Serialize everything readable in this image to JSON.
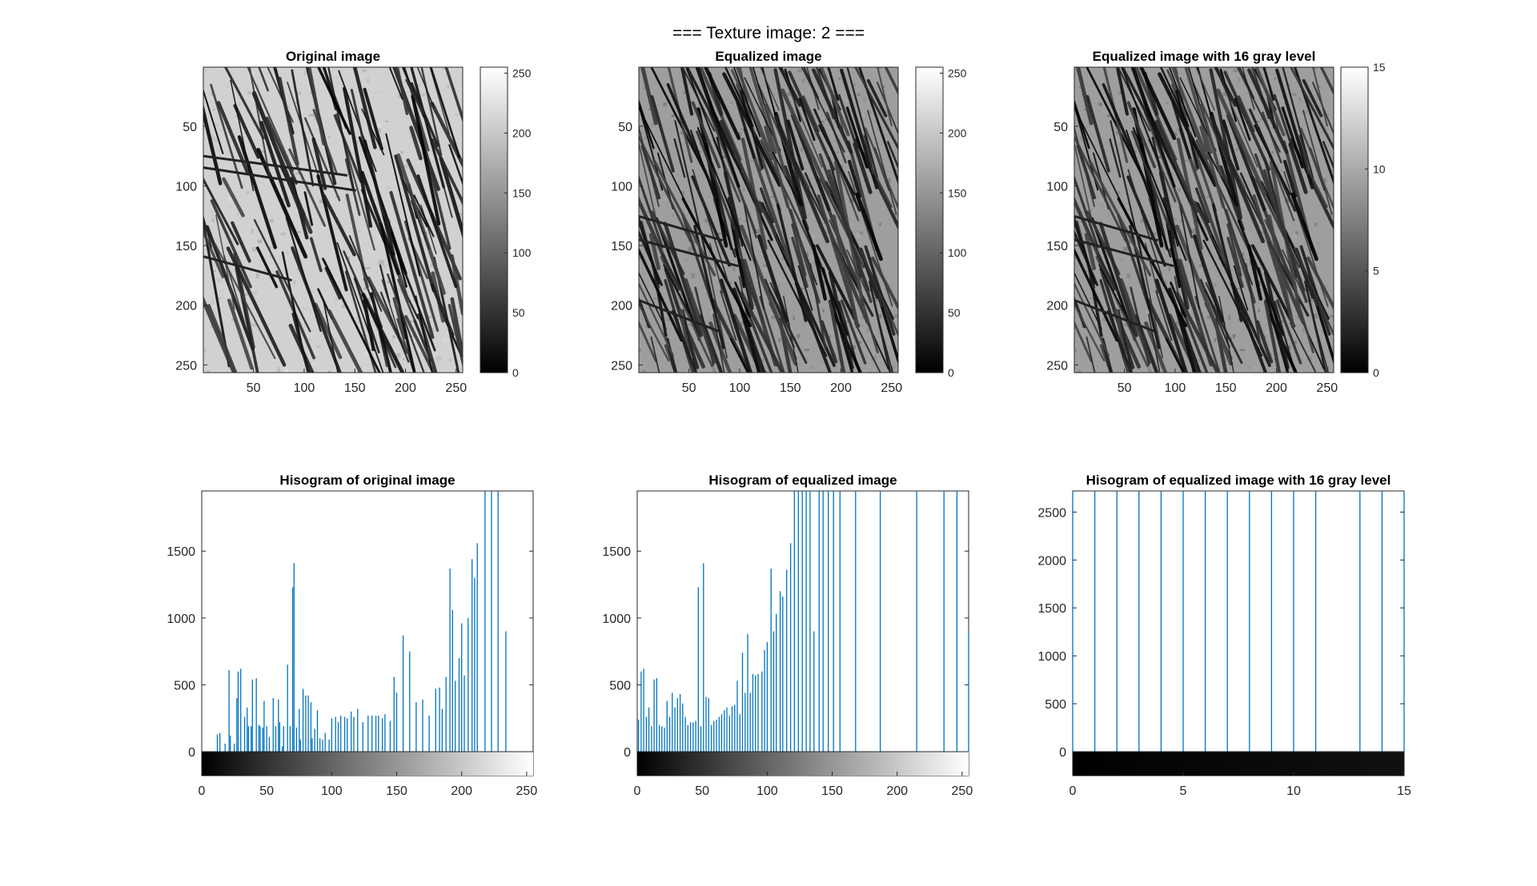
{
  "figure": {
    "suptitle": "=== Texture image: 2 ==="
  },
  "colors": {
    "bar": "#0072BD",
    "axis": "#262626",
    "background": "#ffffff"
  },
  "chart_data": [
    {
      "id": "img_orig",
      "type": "heatmap",
      "title": "Original image",
      "colormap": "gray",
      "xticks": [
        "50",
        "100",
        "150",
        "200",
        "250"
      ],
      "yticks": [
        "50",
        "100",
        "150",
        "200",
        "250"
      ],
      "xlim": [
        0.5,
        256.5
      ],
      "ylim": [
        0.5,
        256.5
      ],
      "colorbar": {
        "range": [
          0,
          255
        ],
        "ticks": [
          "0",
          "50",
          "100",
          "150",
          "200",
          "250"
        ]
      },
      "texture": {
        "background_level": 0.82,
        "stroke_count": 150,
        "seed": 7
      }
    },
    {
      "id": "img_eq",
      "type": "heatmap",
      "title": "Equalized image",
      "colormap": "gray",
      "xticks": [
        "50",
        "100",
        "150",
        "200",
        "250"
      ],
      "yticks": [
        "50",
        "100",
        "150",
        "200",
        "250"
      ],
      "xlim": [
        0.5,
        256.5
      ],
      "ylim": [
        0.5,
        256.5
      ],
      "colorbar": {
        "range": [
          0,
          255
        ],
        "ticks": [
          "0",
          "50",
          "100",
          "150",
          "200",
          "250"
        ]
      },
      "texture": {
        "background_level": 0.62,
        "stroke_count": 230,
        "seed": 7
      }
    },
    {
      "id": "img_eq16",
      "type": "heatmap",
      "title": "Equalized image with 16 gray level",
      "colormap": "gray",
      "xticks": [
        "50",
        "100",
        "150",
        "200",
        "250"
      ],
      "yticks": [
        "50",
        "100",
        "150",
        "200",
        "250"
      ],
      "xlim": [
        0.5,
        256.5
      ],
      "ylim": [
        0.5,
        256.5
      ],
      "colorbar": {
        "range": [
          0,
          15
        ],
        "ticks": [
          "0",
          "5",
          "10",
          "15"
        ]
      },
      "texture": {
        "background_level": 0.62,
        "stroke_count": 230,
        "seed": 7
      }
    },
    {
      "id": "hist_orig",
      "type": "bar",
      "title": "Hisogram of original image",
      "xlim": [
        0,
        255
      ],
      "ylim": [
        0,
        1950
      ],
      "xticks": [
        0,
        50,
        100,
        150,
        200,
        250
      ],
      "yticks": [
        0,
        500,
        1000,
        1500
      ],
      "x": [
        12,
        14,
        18,
        21,
        22,
        25,
        27,
        28,
        30,
        33,
        35,
        36,
        38,
        39,
        42,
        44,
        45,
        47,
        48,
        50,
        52,
        55,
        57,
        59,
        60,
        62,
        63,
        66,
        68,
        70,
        71,
        73,
        75,
        76,
        78,
        80,
        82,
        84,
        85,
        87,
        89,
        91,
        93,
        95,
        98,
        100,
        103,
        105,
        107,
        110,
        112,
        115,
        117,
        120,
        124,
        128,
        131,
        134,
        136,
        139,
        141,
        145,
        148,
        150,
        155,
        160,
        165,
        170,
        175,
        180,
        183,
        185,
        188,
        191,
        193,
        195,
        198,
        200,
        202,
        205,
        208,
        210,
        212,
        218,
        223,
        228,
        234
      ],
      "values": [
        130,
        140,
        60,
        610,
        120,
        60,
        400,
        600,
        620,
        260,
        330,
        190,
        190,
        540,
        550,
        200,
        190,
        180,
        380,
        190,
        110,
        400,
        190,
        390,
        220,
        40,
        190,
        650,
        190,
        1230,
        1410,
        180,
        320,
        90,
        470,
        420,
        420,
        370,
        100,
        170,
        310,
        100,
        90,
        140,
        90,
        250,
        260,
        220,
        270,
        260,
        250,
        300,
        260,
        320,
        220,
        270,
        270,
        270,
        270,
        250,
        280,
        230,
        560,
        440,
        870,
        750,
        370,
        390,
        270,
        470,
        480,
        320,
        560,
        1370,
        1060,
        530,
        700,
        960,
        570,
        1000,
        1440,
        1300,
        1560,
        1950,
        1950,
        1950,
        900
      ]
    },
    {
      "id": "hist_eq",
      "type": "bar",
      "title": "Hisogram of equalized image",
      "xlim": [
        0,
        255
      ],
      "ylim": [
        0,
        1950
      ],
      "xticks": [
        0,
        50,
        100,
        150,
        200,
        250
      ],
      "yticks": [
        0,
        500,
        1000,
        1500
      ],
      "x": [
        1,
        3,
        5,
        7,
        9,
        11,
        13,
        15,
        17,
        19,
        21,
        23,
        25,
        27,
        29,
        31,
        33,
        35,
        37,
        39,
        41,
        43,
        45,
        47,
        49,
        51,
        53,
        55,
        57,
        59,
        61,
        63,
        65,
        67,
        69,
        71,
        73,
        75,
        77,
        79,
        81,
        83,
        85,
        87,
        89,
        91,
        93,
        96,
        98,
        100,
        103,
        105,
        107,
        110,
        112,
        115,
        118,
        121,
        124,
        127,
        130,
        133,
        136,
        140,
        143,
        147,
        151,
        156,
        168,
        187,
        215,
        236,
        246,
        255
      ],
      "values": [
        240,
        600,
        620,
        260,
        330,
        190,
        540,
        550,
        200,
        190,
        180,
        380,
        260,
        440,
        330,
        400,
        430,
        360,
        260,
        200,
        220,
        220,
        230,
        1230,
        190,
        1410,
        410,
        400,
        200,
        230,
        240,
        260,
        280,
        310,
        330,
        270,
        340,
        350,
        530,
        280,
        740,
        440,
        880,
        440,
        580,
        570,
        580,
        600,
        760,
        820,
        1370,
        900,
        1030,
        1200,
        1160,
        1360,
        1560,
        1950,
        1950,
        1950,
        1950,
        1950,
        900,
        1950,
        1950,
        1950,
        1950,
        1950,
        1950,
        1950,
        1950,
        1950,
        1950,
        900
      ],
      "note_unused": ""
    },
    {
      "id": "hist_eq16",
      "type": "bar",
      "title": "Hisogram of equalized image with 16 gray level",
      "xlim": [
        0,
        15
      ],
      "ylim": [
        0,
        2720
      ],
      "xticks": [
        0,
        5,
        10,
        15
      ],
      "yticks": [
        0,
        500,
        1000,
        1500,
        2000,
        2500
      ],
      "x": [
        0,
        1,
        2,
        3,
        4,
        5,
        6,
        7,
        8,
        9,
        10,
        11,
        13,
        14,
        15
      ],
      "values": [
        2720,
        2720,
        2720,
        2720,
        2720,
        2720,
        2720,
        2720,
        2720,
        2720,
        2720,
        2720,
        2720,
        2720,
        2720
      ]
    }
  ]
}
